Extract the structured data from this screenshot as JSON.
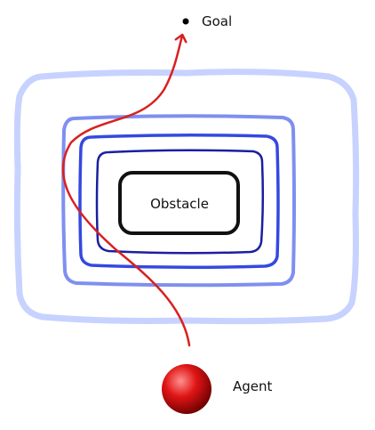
{
  "labels": {
    "goal": "Goal",
    "obstacle": "Obstacle",
    "agent": "Agent"
  },
  "contours": [
    {
      "name": "outer",
      "color": "#c8d2ff"
    },
    {
      "name": "middle",
      "color": "#7f8ff0"
    },
    {
      "name": "inner",
      "color": "#3548e0"
    },
    {
      "name": "innermost",
      "color": "#1a1fa0"
    }
  ],
  "colors": {
    "obstacle_border": "#111111",
    "path": "#d92020",
    "goal_dot": "#000000",
    "agent_highlight": "#ff9090",
    "agent_base": "#e01515",
    "agent_shadow": "#6a0000"
  }
}
